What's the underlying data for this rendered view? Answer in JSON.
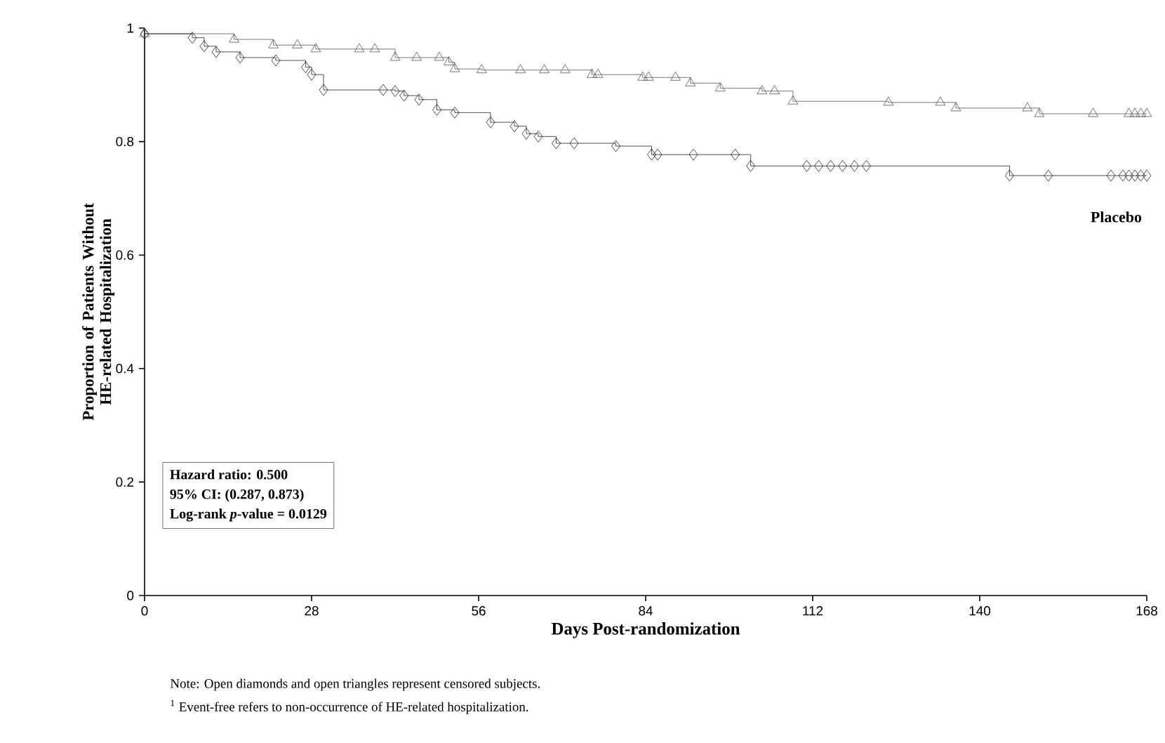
{
  "chart_data": {
    "type": "step",
    "xlabel": "Days Post-randomization",
    "ylabel": "Proportion of Patients Without HE-related Hospitalization",
    "xlim": [
      0,
      168
    ],
    "ylim": [
      0,
      1
    ],
    "xticks": [
      0,
      28,
      56,
      84,
      112,
      140,
      168
    ],
    "yticks": [
      0,
      0.2,
      0.4,
      0.6,
      0.8,
      1
    ],
    "series": [
      {
        "color": "#555555",
        "marker": "triangle",
        "x": [
          0,
          15,
          21.6,
          25.6,
          28.7,
          36,
          38.6,
          42,
          45.6,
          49.4,
          51,
          52,
          56.5,
          63,
          67,
          70.5,
          75,
          76,
          83.5,
          84.5,
          89,
          91.5,
          96.5,
          103.5,
          105.6,
          108.7,
          124.7,
          133.4,
          136,
          148,
          150,
          159,
          165,
          166,
          167,
          168
        ],
        "values": [
          0.99,
          0.98,
          0.97,
          0.97,
          0.963,
          0.963,
          0.963,
          0.948,
          0.948,
          0.948,
          0.94,
          0.928,
          0.926,
          0.926,
          0.926,
          0.926,
          0.918,
          0.918,
          0.913,
          0.913,
          0.913,
          0.903,
          0.894,
          0.889,
          0.889,
          0.871,
          0.869,
          0.869,
          0.859,
          0.859,
          0.849,
          0.849,
          0.849,
          0.849,
          0.849,
          0.849
        ]
      },
      {
        "name": "Placebo",
        "color": "#222222",
        "marker": "diamond",
        "x": [
          0,
          8,
          10,
          12,
          16,
          22,
          27,
          28,
          30,
          40,
          42,
          43.5,
          46,
          49,
          52,
          58,
          62,
          64,
          66,
          69,
          72,
          79,
          85,
          86,
          92,
          99,
          101.6,
          111,
          113,
          115,
          117,
          119,
          121,
          145,
          151.5,
          162,
          164,
          165,
          166,
          167,
          168
        ],
        "values": [
          0.99,
          0.983,
          0.968,
          0.958,
          0.948,
          0.943,
          0.931,
          0.918,
          0.891,
          0.891,
          0.889,
          0.881,
          0.874,
          0.856,
          0.851,
          0.834,
          0.827,
          0.814,
          0.809,
          0.797,
          0.797,
          0.792,
          0.777,
          0.777,
          0.777,
          0.777,
          0.757,
          0.757,
          0.757,
          0.757,
          0.757,
          0.757,
          0.757,
          0.74,
          0.74,
          0.74,
          0.74,
          0.74,
          0.74,
          0.74,
          0.74
        ]
      }
    ],
    "annotations": [
      "Hazard ratio: 0.500",
      "95% CI: (0.287, 0.873)",
      "Log-rank *p*-value = 0.0129",
      "Note: Open diamonds and open triangles represent censored subjects.",
      "$^{1}$ Event-free refers to non-occurrence of HE-related hospitalization."
    ]
  }
}
